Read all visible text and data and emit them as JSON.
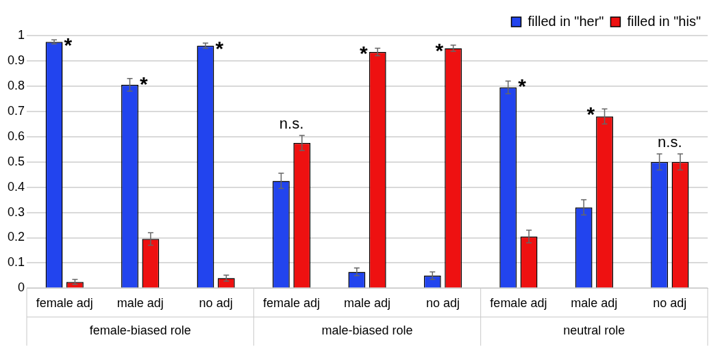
{
  "chart_data": {
    "type": "bar",
    "categories": [
      "female adj",
      "male adj",
      "no adj",
      "female adj",
      "male adj",
      "no adj",
      "female adj",
      "male adj",
      "no adj"
    ],
    "series": [
      {
        "name": "filled in \"her\"",
        "color": "#2244ee",
        "values": [
          0.975,
          0.805,
          0.96,
          0.425,
          0.065,
          0.05,
          0.795,
          0.32,
          0.5
        ],
        "errors": [
          0.008,
          0.025,
          0.01,
          0.03,
          0.015,
          0.015,
          0.025,
          0.03,
          0.032
        ]
      },
      {
        "name": "filled in \"his\"",
        "color": "#ee1111",
        "values": [
          0.025,
          0.195,
          0.04,
          0.575,
          0.935,
          0.95,
          0.205,
          0.68,
          0.5
        ],
        "errors": [
          0.01,
          0.025,
          0.012,
          0.03,
          0.015,
          0.012,
          0.025,
          0.03,
          0.032
        ]
      }
    ],
    "ylim": [
      0,
      1
    ],
    "yticks": [
      0,
      0.1,
      0.2,
      0.3,
      0.4,
      0.5,
      0.6,
      0.7,
      0.8,
      0.9,
      1
    ],
    "grid": "y",
    "legend": "top right",
    "annotations": [
      "female-biased role",
      "male-biased role",
      "neutral role",
      "*",
      "*",
      "*",
      "n.s.",
      "*",
      "*",
      "*",
      "*",
      "n.s."
    ]
  }
}
